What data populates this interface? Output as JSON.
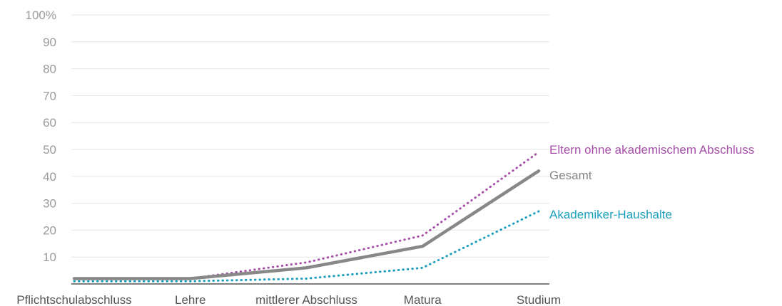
{
  "chart_data": {
    "type": "line",
    "categories": [
      "Pflichtschulabschluss",
      "Lehre",
      "mittlerer Abschluss",
      "Matura",
      "Studium"
    ],
    "ylim": [
      0,
      100
    ],
    "yticks": [
      {
        "value": 10,
        "label": "10"
      },
      {
        "value": 20,
        "label": "20"
      },
      {
        "value": 30,
        "label": "30"
      },
      {
        "value": 40,
        "label": "40"
      },
      {
        "value": 50,
        "label": "50"
      },
      {
        "value": 60,
        "label": "60"
      },
      {
        "value": 70,
        "label": "70"
      },
      {
        "value": 80,
        "label": "80"
      },
      {
        "value": 90,
        "label": "90"
      },
      {
        "value": 100,
        "label": "100%"
      }
    ],
    "grid": true,
    "series": [
      {
        "name": "Eltern ohne akademischem Abschluss",
        "values": [
          2,
          2,
          8,
          18,
          49
        ],
        "color": "#a54fa8",
        "style": "dotted"
      },
      {
        "name": "Gesamt",
        "values": [
          2,
          2,
          6,
          14,
          42
        ],
        "color": "#888888",
        "style": "solid"
      },
      {
        "name": "Akademiker-Haushalte",
        "values": [
          1,
          1,
          2,
          6,
          27
        ],
        "color": "#1a9ebc",
        "style": "dotted"
      }
    ]
  }
}
